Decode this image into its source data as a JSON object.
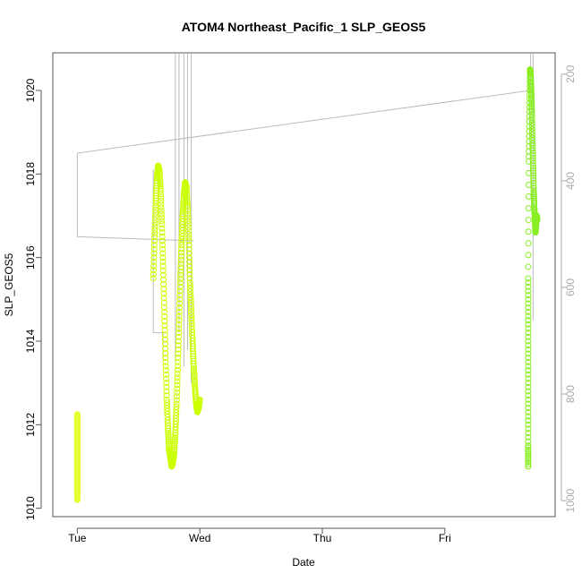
{
  "chart_data": {
    "type": "scatter",
    "title": "ATOM4 Northeast_Pacific_1 SLP_GEOS5",
    "xlabel": "Date",
    "ylabel": "SLP_GEOS5",
    "x_ticks": [
      "Tue",
      "Wed",
      "Thu",
      "Fri"
    ],
    "xlim": [
      -0.2,
      3.9
    ],
    "ylim": [
      1009.8,
      1020.9
    ],
    "y_ticks": [
      1010,
      1012,
      1014,
      1016,
      1018,
      1020
    ],
    "right_axis": {
      "ticks": [
        200,
        400,
        600,
        800,
        1000
      ],
      "range": [
        160,
        1030
      ],
      "reversed": true
    },
    "grid": false,
    "colors": {
      "early": "#e6ff33",
      "mid": "#ccff00",
      "late": "#88ee22",
      "aux": "#bbbbbb",
      "axis": "#555555"
    },
    "series": [
      {
        "color": "#e6ff33",
        "x": [
          0,
          0,
          0,
          0,
          0,
          0,
          0,
          0,
          0,
          0,
          0,
          0,
          0,
          0,
          0,
          0,
          0,
          0,
          0,
          0,
          0,
          0
        ],
        "y": [
          1010.2,
          1010.3,
          1010.4,
          1010.5,
          1010.6,
          1010.7,
          1010.8,
          1010.9,
          1011.0,
          1011.1,
          1011.2,
          1011.3,
          1011.4,
          1011.5,
          1011.6,
          1011.7,
          1011.8,
          1011.9,
          1012.0,
          1012.1,
          1012.2,
          1012.25
        ]
      },
      {
        "color": "#ccff00",
        "x": [
          0.62,
          0.63,
          0.64,
          0.65,
          0.66,
          0.67,
          0.68,
          0.69,
          0.7,
          0.71,
          0.72,
          0.73,
          0.74,
          0.75,
          0.76,
          0.77,
          0.78,
          0.79,
          0.8,
          0.81,
          0.82,
          0.83,
          0.84,
          0.85,
          0.86,
          0.87,
          0.88,
          0.89,
          0.9,
          0.91,
          0.92,
          0.93,
          0.94,
          0.95,
          0.96,
          0.97,
          0.98,
          0.99,
          1.0
        ],
        "y": [
          1015.5,
          1016.5,
          1017.3,
          1017.9,
          1018.2,
          1018.1,
          1017.6,
          1016.8,
          1015.8,
          1014.7,
          1013.6,
          1012.6,
          1011.9,
          1011.4,
          1011.2,
          1011.0,
          1011.1,
          1011.3,
          1011.8,
          1012.5,
          1013.4,
          1014.4,
          1015.4,
          1016.3,
          1017.0,
          1017.5,
          1017.8,
          1017.7,
          1017.2,
          1016.4,
          1015.4,
          1014.7,
          1014.0,
          1013.4,
          1012.9,
          1012.5,
          1012.3,
          1012.4,
          1012.6
        ]
      },
      {
        "color": "#88ee22",
        "x": [
          3.68,
          3.68,
          3.68,
          3.68,
          3.68,
          3.68,
          3.685,
          3.69,
          3.695,
          3.7,
          3.705,
          3.71,
          3.715,
          3.72,
          3.725,
          3.73,
          3.735,
          3.74,
          3.745,
          3.75,
          3.755
        ],
        "y": [
          1011.0,
          1011.5,
          1012.5,
          1013.5,
          1014.5,
          1015.5,
          1018.3,
          1019.5,
          1020.5,
          1020.4,
          1020.0,
          1019.5,
          1018.8,
          1018.2,
          1017.6,
          1017.2,
          1016.9,
          1016.6,
          1016.8,
          1017.0,
          1016.9
        ]
      }
    ]
  }
}
